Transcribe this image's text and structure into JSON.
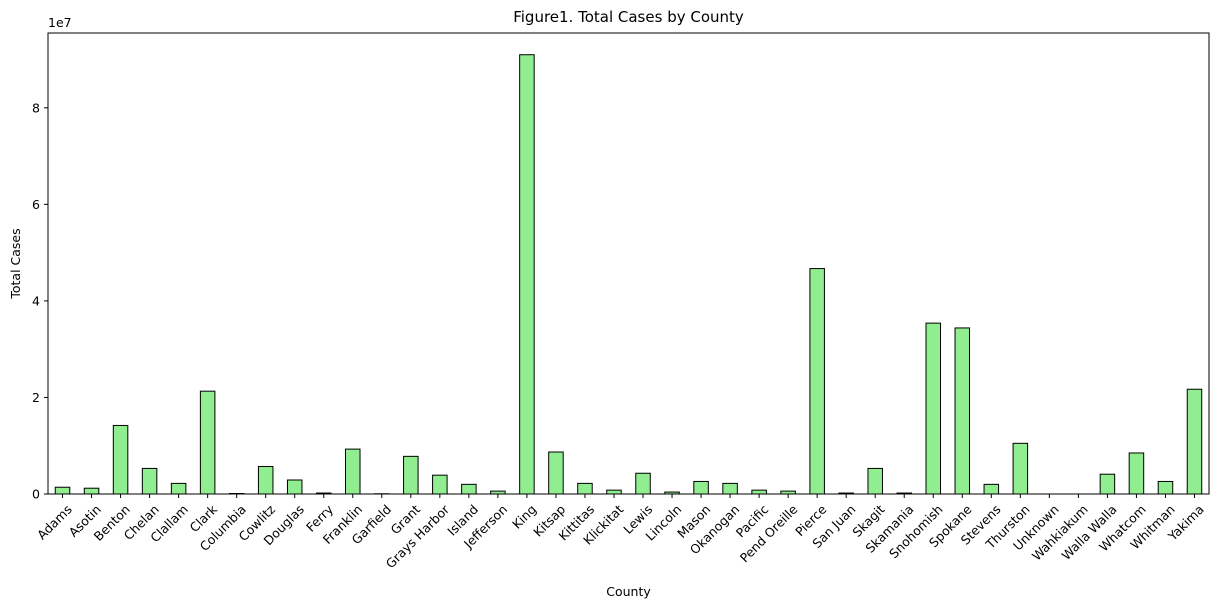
{
  "chart_data": {
    "type": "bar",
    "title": "Figure1. Total Cases by County",
    "xlabel": "County",
    "ylabel": "Total Cases",
    "scale_label": "1e7",
    "ylim": [
      0,
      95500000
    ],
    "yticks": [
      0,
      20000000,
      40000000,
      60000000,
      80000000
    ],
    "ytick_labels": [
      "0",
      "2",
      "4",
      "6",
      "8"
    ],
    "grid": false,
    "legend": "none",
    "bar_color": "#90ee90",
    "edge_color": "#000000",
    "categories": [
      "Adams",
      "Asotin",
      "Benton",
      "Chelan",
      "Clallam",
      "Clark",
      "Columbia",
      "Cowlitz",
      "Douglas",
      "Ferry",
      "Franklin",
      "Garfield",
      "Grant",
      "Grays Harbor",
      "Island",
      "Jefferson",
      "King",
      "Kitsap",
      "Kittitas",
      "Klickitat",
      "Lewis",
      "Lincoln",
      "Mason",
      "Okanogan",
      "Pacific",
      "Pend Oreille",
      "Pierce",
      "San Juan",
      "Skagit",
      "Skamania",
      "Snohomish",
      "Spokane",
      "Stevens",
      "Thurston",
      "Unknown",
      "Wahkiakum",
      "Walla Walla",
      "Whatcom",
      "Whitman",
      "Yakima"
    ],
    "values": [
      1400000,
      1200000,
      14200000,
      5300000,
      2200000,
      21300000,
      100000,
      5700000,
      2900000,
      200000,
      9300000,
      50000,
      7800000,
      3900000,
      2000000,
      600000,
      91000000,
      8700000,
      2200000,
      800000,
      4300000,
      400000,
      2600000,
      2200000,
      800000,
      600000,
      46700000,
      200000,
      5300000,
      200000,
      35400000,
      34400000,
      2000000,
      10500000,
      0,
      0,
      4100000,
      8500000,
      2600000,
      21700000
    ]
  }
}
